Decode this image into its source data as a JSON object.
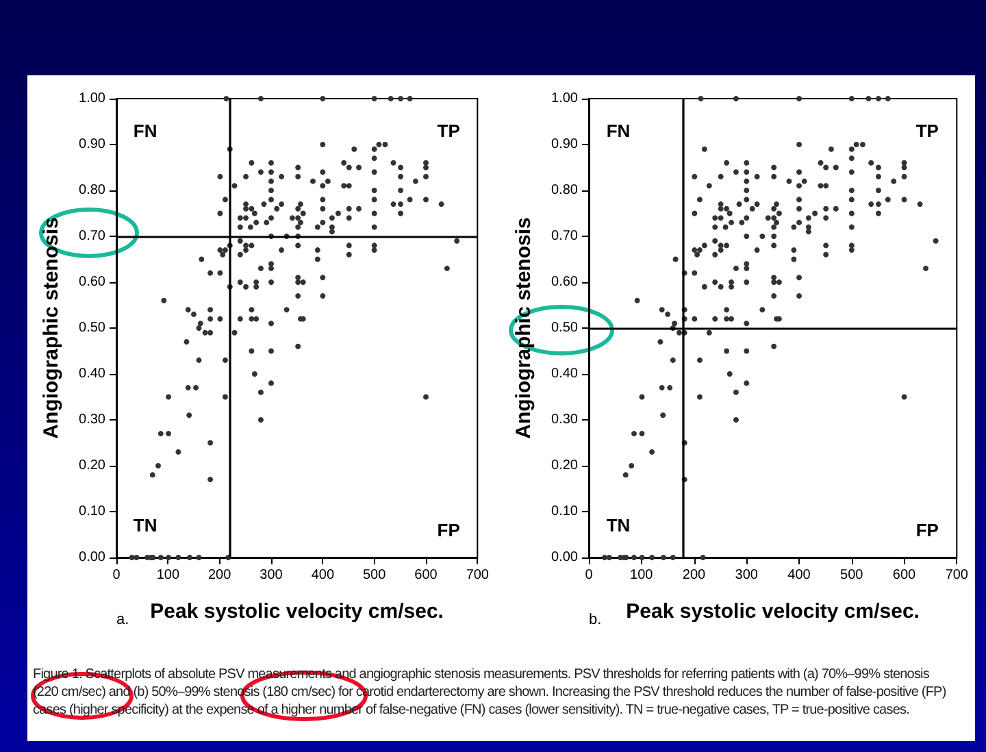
{
  "chart_data": [
    {
      "type": "scatter",
      "title": "a.",
      "xlabel": "Peak systolic velocity cm/sec.",
      "ylabel": "Angiographic stenosis",
      "marker": "circle",
      "grid": false,
      "xlim": [
        0,
        700
      ],
      "xticks": [
        0,
        100,
        200,
        300,
        400,
        500,
        600,
        700
      ],
      "ylim": [
        0,
        1
      ],
      "yticks": [
        {
          "value": 0,
          "label": "0.00"
        },
        {
          "value": 0.1,
          "label": "0.10"
        },
        {
          "value": 0.2,
          "label": "0.20"
        },
        {
          "value": 0.3,
          "label": "0.30"
        },
        {
          "value": 0.4,
          "label": "0.40"
        },
        {
          "value": 0.5,
          "label": "0.50"
        },
        {
          "value": 0.6,
          "label": "0.60"
        },
        {
          "value": 0.7,
          "label": "0.70"
        },
        {
          "value": 0.8,
          "label": "0.80"
        },
        {
          "value": 0.9,
          "label": "0.90"
        },
        {
          "value": 1,
          "label": "1.00"
        }
      ],
      "ref_lines": [
        {
          "axis": "x",
          "value": 220,
          "color": "#000000"
        },
        {
          "axis": "y",
          "value": 0.7,
          "color": "#000000"
        }
      ],
      "annotations": [
        "FN",
        "TP",
        "TN",
        "FP",
        "Figure 1.    Scatterplots of absolute PSV measurements and angiographic stenosis measurements. PSV thresholds for referring patients with (a) 70%–99% stenosis (220 cm/sec) and (b) 50%–99% stenosis (180 cm/sec) for carotid endarterectomy are shown. Increasing the PSV threshold reduces the number of false-positive (FP) cases (higher specificity) at the expense of a higher number of false-negative (FN) cases (lower sensitivity). TN = true-negative cases, TP = true-positive cases."
      ],
      "series": [
        {
          "color": "#333333",
          "x": [
            213,
            280,
            400,
            500,
            532,
            551,
            569,
            30,
            39,
            60,
            67,
            71,
            86,
            101,
            120,
            142,
            160,
            217,
            400,
            509,
            521,
            461,
            500,
            220,
            262,
            300,
            300,
            300,
            300,
            300,
            300,
            300,
            352,
            352,
            320,
            280,
            251,
            201,
            441,
            451,
            470,
            400,
            400,
            400,
            400,
            400,
            381,
            410,
            441,
            451,
            500,
            500,
            500,
            500,
            500,
            500,
            537,
            551,
            551,
            551,
            551,
            551,
            537,
            569,
            580,
            600,
            600,
            600,
            600,
            630,
            229,
            211,
            201,
            251,
            251,
            262,
            268,
            240,
            251,
            240,
            260,
            271,
            286,
            291,
            311,
            320,
            341,
            352,
            357,
            362,
            352,
            352,
            357,
            390,
            418,
            418,
            430,
            451,
            451,
            470,
            418,
            660,
            240,
            262,
            251,
            240,
            251,
            220,
            211,
            201,
            206,
            165,
            182,
            201,
            300,
            300,
            280,
            300,
            320,
            330,
            352,
            352,
            352,
            352,
            362,
            352,
            390,
            390,
            400,
            400,
            451,
            451,
            500,
            500,
            641,
            600,
            220,
            240,
            251,
            271,
            271,
            330,
            357,
            362,
            352,
            240,
            262,
            271,
            262,
            300,
            229,
            262,
            300,
            268,
            300,
            280,
            280,
            211,
            211,
            92,
            139,
            150,
            182,
            182,
            201,
            163,
            160,
            182,
            172,
            136,
            160,
            139,
            154,
            101,
            141,
            86,
            101,
            120,
            81,
            70,
            182,
            182
          ],
          "values": [
            1.0,
            1.0,
            1.0,
            1.0,
            1.0,
            1.0,
            1.0,
            0.0,
            0.0,
            0.0,
            0.0,
            0.0,
            0.0,
            0.0,
            0.0,
            0.0,
            0.0,
            0.0,
            0.9,
            0.9,
            0.9,
            0.89,
            0.89,
            0.89,
            0.86,
            0.86,
            0.84,
            0.82,
            0.8,
            0.78,
            0.74,
            0.7,
            0.85,
            0.83,
            0.83,
            0.84,
            0.83,
            0.83,
            0.86,
            0.85,
            0.85,
            0.84,
            0.81,
            0.78,
            0.76,
            0.73,
            0.82,
            0.82,
            0.81,
            0.81,
            0.87,
            0.84,
            0.8,
            0.78,
            0.75,
            0.72,
            0.86,
            0.85,
            0.83,
            0.8,
            0.77,
            0.75,
            0.77,
            0.78,
            0.82,
            0.86,
            0.85,
            0.83,
            0.78,
            0.77,
            0.81,
            0.78,
            0.75,
            0.77,
            0.76,
            0.76,
            0.75,
            0.74,
            0.74,
            0.72,
            0.72,
            0.73,
            0.77,
            0.73,
            0.76,
            0.77,
            0.74,
            0.74,
            0.77,
            0.75,
            0.76,
            0.72,
            0.73,
            0.72,
            0.74,
            0.72,
            0.75,
            0.74,
            0.76,
            0.76,
            0.71,
            0.69,
            0.69,
            0.68,
            0.68,
            0.66,
            0.67,
            0.68,
            0.67,
            0.67,
            0.66,
            0.65,
            0.62,
            0.62,
            0.64,
            0.63,
            0.63,
            0.6,
            0.67,
            0.7,
            0.7,
            0.68,
            0.61,
            0.6,
            0.6,
            0.57,
            0.67,
            0.65,
            0.61,
            0.57,
            0.68,
            0.66,
            0.68,
            0.67,
            0.63,
            0.35,
            0.59,
            0.6,
            0.59,
            0.6,
            0.59,
            0.54,
            0.52,
            0.52,
            0.46,
            0.52,
            0.54,
            0.52,
            0.52,
            0.51,
            0.49,
            0.45,
            0.45,
            0.4,
            0.38,
            0.36,
            0.3,
            0.43,
            0.35,
            0.56,
            0.54,
            0.53,
            0.54,
            0.52,
            0.52,
            0.51,
            0.5,
            0.49,
            0.49,
            0.47,
            0.43,
            0.37,
            0.37,
            0.35,
            0.31,
            0.27,
            0.27,
            0.23,
            0.2,
            0.18,
            0.25,
            0.17
          ]
        }
      ]
    },
    {
      "type": "scatter",
      "title": "b.",
      "xlabel": "Peak systolic velocity cm/sec.",
      "ylabel": "Angiographic stenosis",
      "marker": "circle",
      "grid": false,
      "xlim": [
        0,
        700
      ],
      "xticks": [
        0,
        100,
        200,
        300,
        400,
        500,
        600,
        700
      ],
      "ylim": [
        0,
        1
      ],
      "yticks": [
        {
          "value": 0,
          "label": "0.00"
        },
        {
          "value": 0.1,
          "label": "0.10"
        },
        {
          "value": 0.2,
          "label": "0.20"
        },
        {
          "value": 0.3,
          "label": "0.30"
        },
        {
          "value": 0.4,
          "label": "0.40"
        },
        {
          "value": 0.5,
          "label": "0.50"
        },
        {
          "value": 0.6,
          "label": "0.60"
        },
        {
          "value": 0.7,
          "label": "0.70"
        },
        {
          "value": 0.8,
          "label": "0.80"
        },
        {
          "value": 0.9,
          "label": "0.90"
        },
        {
          "value": 1,
          "label": "1.00"
        }
      ],
      "ref_lines": [
        {
          "axis": "x",
          "value": 180,
          "color": "#000000"
        },
        {
          "axis": "y",
          "value": 0.5,
          "color": "#000000"
        }
      ],
      "annotations": [
        "FN",
        "TP",
        "TN",
        "FP"
      ],
      "series": [
        {
          "color": "#333333",
          "x": [
            213,
            280,
            400,
            500,
            532,
            551,
            569,
            30,
            39,
            60,
            67,
            71,
            86,
            101,
            120,
            142,
            160,
            217,
            400,
            509,
            521,
            461,
            500,
            220,
            262,
            300,
            300,
            300,
            300,
            300,
            300,
            300,
            352,
            352,
            320,
            280,
            251,
            201,
            441,
            451,
            470,
            400,
            400,
            400,
            400,
            400,
            381,
            410,
            441,
            451,
            500,
            500,
            500,
            500,
            500,
            500,
            537,
            551,
            551,
            551,
            551,
            551,
            537,
            569,
            580,
            600,
            600,
            600,
            600,
            630,
            229,
            211,
            201,
            251,
            251,
            262,
            268,
            240,
            251,
            240,
            260,
            271,
            286,
            291,
            311,
            320,
            341,
            352,
            357,
            362,
            352,
            352,
            357,
            390,
            418,
            418,
            430,
            451,
            451,
            470,
            418,
            660,
            240,
            262,
            251,
            240,
            251,
            220,
            211,
            201,
            206,
            165,
            182,
            201,
            300,
            300,
            280,
            300,
            320,
            330,
            352,
            352,
            352,
            352,
            362,
            352,
            390,
            390,
            400,
            400,
            451,
            451,
            500,
            500,
            641,
            600,
            220,
            240,
            251,
            271,
            271,
            330,
            357,
            362,
            352,
            240,
            262,
            271,
            262,
            300,
            229,
            262,
            300,
            268,
            300,
            280,
            280,
            211,
            211,
            92,
            139,
            150,
            182,
            182,
            201,
            163,
            160,
            182,
            172,
            136,
            160,
            139,
            154,
            101,
            141,
            86,
            101,
            120,
            81,
            70,
            182,
            182
          ],
          "values": [
            1.0,
            1.0,
            1.0,
            1.0,
            1.0,
            1.0,
            1.0,
            0.0,
            0.0,
            0.0,
            0.0,
            0.0,
            0.0,
            0.0,
            0.0,
            0.0,
            0.0,
            0.0,
            0.9,
            0.9,
            0.9,
            0.89,
            0.89,
            0.89,
            0.86,
            0.86,
            0.84,
            0.82,
            0.8,
            0.78,
            0.74,
            0.7,
            0.85,
            0.83,
            0.83,
            0.84,
            0.83,
            0.83,
            0.86,
            0.85,
            0.85,
            0.84,
            0.81,
            0.78,
            0.76,
            0.73,
            0.82,
            0.82,
            0.81,
            0.81,
            0.87,
            0.84,
            0.8,
            0.78,
            0.75,
            0.72,
            0.86,
            0.85,
            0.83,
            0.8,
            0.77,
            0.75,
            0.77,
            0.78,
            0.82,
            0.86,
            0.85,
            0.83,
            0.78,
            0.77,
            0.81,
            0.78,
            0.75,
            0.77,
            0.76,
            0.76,
            0.75,
            0.74,
            0.74,
            0.72,
            0.72,
            0.73,
            0.77,
            0.73,
            0.76,
            0.77,
            0.74,
            0.74,
            0.77,
            0.75,
            0.76,
            0.72,
            0.73,
            0.72,
            0.74,
            0.72,
            0.75,
            0.74,
            0.76,
            0.76,
            0.71,
            0.69,
            0.69,
            0.68,
            0.68,
            0.66,
            0.67,
            0.68,
            0.67,
            0.67,
            0.66,
            0.65,
            0.62,
            0.62,
            0.64,
            0.63,
            0.63,
            0.6,
            0.67,
            0.7,
            0.7,
            0.68,
            0.61,
            0.6,
            0.6,
            0.57,
            0.67,
            0.65,
            0.61,
            0.57,
            0.68,
            0.66,
            0.68,
            0.67,
            0.63,
            0.35,
            0.59,
            0.6,
            0.59,
            0.6,
            0.59,
            0.54,
            0.52,
            0.52,
            0.46,
            0.52,
            0.54,
            0.52,
            0.52,
            0.51,
            0.49,
            0.45,
            0.45,
            0.4,
            0.38,
            0.36,
            0.3,
            0.43,
            0.35,
            0.56,
            0.54,
            0.53,
            0.54,
            0.52,
            0.52,
            0.51,
            0.5,
            0.49,
            0.49,
            0.47,
            0.43,
            0.37,
            0.37,
            0.35,
            0.31,
            0.27,
            0.27,
            0.23,
            0.2,
            0.18,
            0.25,
            0.17
          ]
        }
      ]
    }
  ]
}
